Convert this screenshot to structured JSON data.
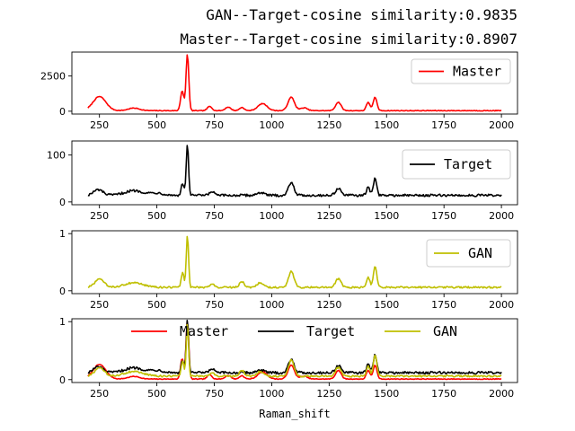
{
  "titles": [
    "GAN--Target-cosine similarity:0.9835",
    "Master--Target-cosine similarity:0.8907"
  ],
  "colors": {
    "master": "#ff0000",
    "target": "#000000",
    "gan": "#bfbf00"
  },
  "chart_data": [
    {
      "type": "line",
      "name": "master",
      "series": [
        {
          "name": "Master",
          "color": "#ff0000"
        }
      ],
      "x_range": [
        200,
        2000
      ],
      "xlim": [
        130,
        2070
      ],
      "ylim": [
        -200,
        4200
      ],
      "x_ticks": [
        250,
        500,
        750,
        1000,
        1250,
        1500,
        1750,
        2000
      ],
      "y_ticks": [
        0,
        2500
      ],
      "peaks": [
        {
          "x": 250,
          "h": 1000,
          "w": 28
        },
        {
          "x": 400,
          "h": 180,
          "w": 25
        },
        {
          "x": 610,
          "h": 1400,
          "w": 7
        },
        {
          "x": 633,
          "h": 4000,
          "w": 6
        },
        {
          "x": 730,
          "h": 300,
          "w": 10
        },
        {
          "x": 810,
          "h": 250,
          "w": 12
        },
        {
          "x": 870,
          "h": 230,
          "w": 10
        },
        {
          "x": 960,
          "h": 500,
          "w": 20
        },
        {
          "x": 1085,
          "h": 950,
          "w": 14
        },
        {
          "x": 1140,
          "h": 200,
          "w": 15
        },
        {
          "x": 1290,
          "h": 600,
          "w": 12
        },
        {
          "x": 1420,
          "h": 600,
          "w": 8
        },
        {
          "x": 1450,
          "h": 950,
          "w": 8
        }
      ],
      "baseline": 40,
      "noise": 25,
      "legend": {
        "labels": [
          "Master"
        ],
        "position": "upper right"
      }
    },
    {
      "type": "line",
      "name": "target",
      "series": [
        {
          "name": "Target",
          "color": "#000000"
        }
      ],
      "x_range": [
        200,
        2000
      ],
      "xlim": [
        130,
        2070
      ],
      "ylim": [
        -6,
        130
      ],
      "x_ticks": [
        250,
        500,
        750,
        1000,
        1250,
        1500,
        1750,
        2000
      ],
      "y_ticks": [
        0,
        100
      ],
      "peaks": [
        {
          "x": 245,
          "h": 12,
          "w": 20
        },
        {
          "x": 400,
          "h": 10,
          "w": 40
        },
        {
          "x": 500,
          "h": 5,
          "w": 30
        },
        {
          "x": 612,
          "h": 25,
          "w": 6
        },
        {
          "x": 633,
          "h": 110,
          "w": 5
        },
        {
          "x": 740,
          "h": 8,
          "w": 10
        },
        {
          "x": 950,
          "h": 6,
          "w": 15
        },
        {
          "x": 1085,
          "h": 28,
          "w": 12
        },
        {
          "x": 1290,
          "h": 15,
          "w": 12
        },
        {
          "x": 1420,
          "h": 18,
          "w": 7
        },
        {
          "x": 1450,
          "h": 38,
          "w": 7
        }
      ],
      "baseline": 14,
      "noise": 2.5,
      "legend": {
        "labels": [
          "Target"
        ],
        "position": "upper right"
      }
    },
    {
      "type": "line",
      "name": "gan",
      "series": [
        {
          "name": "GAN",
          "color": "#bfbf00"
        }
      ],
      "x_range": [
        200,
        2000
      ],
      "xlim": [
        130,
        2070
      ],
      "ylim": [
        -0.05,
        1.05
      ],
      "x_ticks": [
        250,
        500,
        750,
        1000,
        1250,
        1500,
        1750,
        2000
      ],
      "y_ticks": [
        0,
        1
      ],
      "peaks": [
        {
          "x": 250,
          "h": 0.14,
          "w": 20
        },
        {
          "x": 400,
          "h": 0.08,
          "w": 40
        },
        {
          "x": 612,
          "h": 0.25,
          "w": 6
        },
        {
          "x": 633,
          "h": 0.9,
          "w": 5
        },
        {
          "x": 740,
          "h": 0.06,
          "w": 10
        },
        {
          "x": 870,
          "h": 0.1,
          "w": 10
        },
        {
          "x": 950,
          "h": 0.08,
          "w": 15
        },
        {
          "x": 1085,
          "h": 0.28,
          "w": 12
        },
        {
          "x": 1290,
          "h": 0.15,
          "w": 12
        },
        {
          "x": 1420,
          "h": 0.18,
          "w": 7
        },
        {
          "x": 1450,
          "h": 0.38,
          "w": 7
        }
      ],
      "baseline": 0.06,
      "noise": 0.015,
      "legend": {
        "labels": [
          "GAN"
        ],
        "position": "upper right"
      }
    },
    {
      "type": "line",
      "name": "overlay",
      "series": [
        {
          "name": "Master",
          "color": "#ff0000",
          "source": 0,
          "scale": 0.00025
        },
        {
          "name": "Target",
          "color": "#000000",
          "source": 1,
          "scale": 0.0085
        },
        {
          "name": "GAN",
          "color": "#bfbf00",
          "source": 2,
          "scale": 1.0
        }
      ],
      "x_range": [
        200,
        2000
      ],
      "xlim": [
        130,
        2070
      ],
      "ylim": [
        -0.05,
        1.05
      ],
      "x_ticks": [
        250,
        500,
        750,
        1000,
        1250,
        1500,
        1750,
        2000
      ],
      "y_ticks": [
        0,
        1
      ],
      "xlabel": "Raman_shift",
      "legend": {
        "labels": [
          "Master",
          "Target",
          "GAN"
        ],
        "position": "upper center"
      }
    }
  ]
}
